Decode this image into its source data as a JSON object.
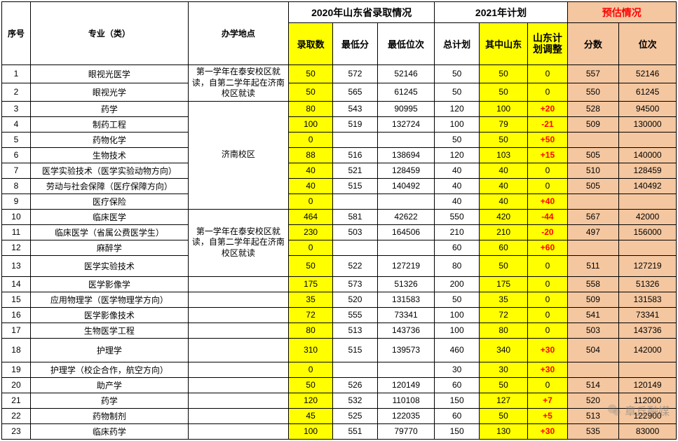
{
  "headers": {
    "idx": "序号",
    "major": "专业（类）",
    "location": "办学地点",
    "group2020": "2020年山东省录取情况",
    "group2021": "2021年计划",
    "groupEst": "预估情况",
    "admitCount": "录取数",
    "minScore": "最低分",
    "minRank": "最低位次",
    "totalPlan": "总计划",
    "sdPlan": "其中山东",
    "sdAdj": "山东计划调整",
    "estScore": "分数",
    "estRank": "位次"
  },
  "locGroups": {
    "g1": "第一学年在泰安校区就读，自第二学年起在济南校区就读",
    "g2": "济南校区",
    "g3": "第一学年在泰安校区就读，自第二学年起在济南校区就读"
  },
  "rows": [
    {
      "idx": "1",
      "major": "眼视光医学",
      "loc": "g1",
      "admit": "50",
      "minS": "572",
      "minR": "52146",
      "total": "50",
      "sd": "50",
      "adj": "0",
      "adjRed": false,
      "eS": "557",
      "eR": "52146"
    },
    {
      "idx": "2",
      "major": "眼视光学",
      "loc": "g1",
      "admit": "50",
      "minS": "565",
      "minR": "61245",
      "total": "50",
      "sd": "50",
      "adj": "0",
      "adjRed": false,
      "eS": "550",
      "eR": "61245"
    },
    {
      "idx": "3",
      "major": "药学",
      "loc": "g2",
      "admit": "80",
      "minS": "543",
      "minR": "90995",
      "total": "120",
      "sd": "100",
      "adj": "+20",
      "adjRed": true,
      "eS": "528",
      "eR": "94500"
    },
    {
      "idx": "4",
      "major": "制药工程",
      "loc": "g2",
      "admit": "100",
      "minS": "519",
      "minR": "132724",
      "total": "100",
      "sd": "79",
      "adj": "-21",
      "adjRed": true,
      "eS": "509",
      "eR": "130000"
    },
    {
      "idx": "5",
      "major": "药物化学",
      "loc": "g2",
      "admit": "0",
      "minS": "",
      "minR": "",
      "total": "50",
      "sd": "50",
      "adj": "+50",
      "adjRed": true,
      "eS": "",
      "eR": ""
    },
    {
      "idx": "6",
      "major": "生物技术",
      "loc": "g2",
      "admit": "88",
      "minS": "516",
      "minR": "138694",
      "total": "120",
      "sd": "103",
      "adj": "+15",
      "adjRed": true,
      "eS": "505",
      "eR": "140000"
    },
    {
      "idx": "7",
      "major": "医学实验技术（医学实验动物方向）",
      "loc": "g2",
      "admit": "40",
      "minS": "521",
      "minR": "128459",
      "total": "40",
      "sd": "40",
      "adj": "0",
      "adjRed": false,
      "eS": "510",
      "eR": "128459"
    },
    {
      "idx": "8",
      "major": "劳动与社会保障（医疗保障方向）",
      "loc": "g2",
      "admit": "40",
      "minS": "515",
      "minR": "140492",
      "total": "40",
      "sd": "40",
      "adj": "0",
      "adjRed": false,
      "eS": "505",
      "eR": "140492"
    },
    {
      "idx": "9",
      "major": "医疗保险",
      "loc": "g2",
      "admit": "0",
      "minS": "",
      "minR": "",
      "total": "40",
      "sd": "40",
      "adj": "+40",
      "adjRed": true,
      "eS": "",
      "eR": ""
    },
    {
      "idx": "10",
      "major": "临床医学",
      "loc": "g3",
      "admit": "464",
      "minS": "581",
      "minR": "42622",
      "total": "550",
      "sd": "420",
      "adj": "-44",
      "adjRed": true,
      "eS": "567",
      "eR": "42000"
    },
    {
      "idx": "11",
      "major": "临床医学（省属公费医学生）",
      "loc": "g3",
      "admit": "230",
      "minS": "503",
      "minR": "164506",
      "total": "210",
      "sd": "210",
      "adj": "-20",
      "adjRed": true,
      "eS": "497",
      "eR": "156000"
    },
    {
      "idx": "12",
      "major": "麻醉学",
      "loc": "g3",
      "admit": "0",
      "minS": "",
      "minR": "",
      "total": "60",
      "sd": "60",
      "adj": "+60",
      "adjRed": true,
      "eS": "",
      "eR": ""
    },
    {
      "idx": "13",
      "major": "医学实验技术",
      "loc": "g3",
      "admit": "50",
      "minS": "522",
      "minR": "127219",
      "total": "80",
      "sd": "50",
      "adj": "0",
      "adjRed": false,
      "eS": "511",
      "eR": "127219"
    },
    {
      "idx": "14",
      "major": "医学影像学",
      "loc": "",
      "admit": "175",
      "minS": "573",
      "minR": "51326",
      "total": "200",
      "sd": "175",
      "adj": "0",
      "adjRed": false,
      "eS": "558",
      "eR": "51326"
    },
    {
      "idx": "15",
      "major": "应用物理学（医学物理学方向）",
      "loc": "",
      "admit": "35",
      "minS": "520",
      "minR": "131583",
      "total": "50",
      "sd": "35",
      "adj": "0",
      "adjRed": false,
      "eS": "509",
      "eR": "131583"
    },
    {
      "idx": "16",
      "major": "医学影像技术",
      "loc": "",
      "admit": "72",
      "minS": "555",
      "minR": "73341",
      "total": "100",
      "sd": "72",
      "adj": "0",
      "adjRed": false,
      "eS": "541",
      "eR": "73341"
    },
    {
      "idx": "17",
      "major": "生物医学工程",
      "loc": "",
      "admit": "80",
      "minS": "513",
      "minR": "143736",
      "total": "100",
      "sd": "80",
      "adj": "0",
      "adjRed": false,
      "eS": "503",
      "eR": "143736"
    },
    {
      "idx": "18",
      "major": "护理学",
      "loc": "",
      "admit": "310",
      "minS": "515",
      "minR": "139573",
      "total": "460",
      "sd": "340",
      "adj": "+30",
      "adjRed": true,
      "eS": "504",
      "eR": "142000"
    },
    {
      "idx": "19",
      "major": "护理学（校企合作，航空方向）",
      "loc": "",
      "admit": "0",
      "minS": "",
      "minR": "",
      "total": "30",
      "sd": "30",
      "adj": "+30",
      "adjRed": true,
      "eS": "",
      "eR": ""
    },
    {
      "idx": "20",
      "major": "助产学",
      "loc": "",
      "admit": "50",
      "minS": "526",
      "minR": "120149",
      "total": "60",
      "sd": "50",
      "adj": "0",
      "adjRed": false,
      "eS": "514",
      "eR": "120149"
    },
    {
      "idx": "21",
      "major": "药学",
      "loc": "",
      "admit": "120",
      "minS": "532",
      "minR": "110108",
      "total": "150",
      "sd": "127",
      "adj": "+7",
      "adjRed": true,
      "eS": "520",
      "eR": "112000"
    },
    {
      "idx": "22",
      "major": "药物制剂",
      "loc": "",
      "admit": "45",
      "minS": "525",
      "minR": "122035",
      "total": "60",
      "sd": "50",
      "adj": "+5",
      "adjRed": true,
      "eS": "513",
      "eR": "122900"
    },
    {
      "idx": "23",
      "major": "临床药学",
      "loc": "",
      "admit": "100",
      "minS": "551",
      "minR": "79770",
      "total": "150",
      "sd": "130",
      "adj": "+30",
      "adjRed": true,
      "eS": "535",
      "eR": "83000"
    }
  ],
  "watermark": "章丘融媒",
  "colors": {
    "yellow": "#ffff00",
    "peach": "#f4c7a0",
    "red": "#ff0000",
    "border": "#000000"
  },
  "locRowspans": {
    "g1": 2,
    "g2": 7,
    "g3": 4
  }
}
